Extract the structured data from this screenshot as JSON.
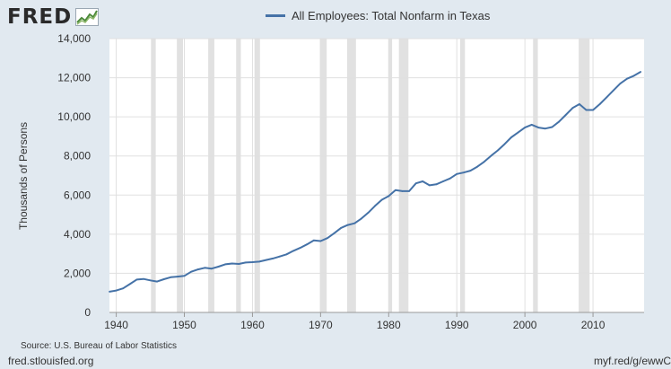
{
  "brand": {
    "name": "FRED",
    "logo_icon": "chart-trend-icon"
  },
  "colors": {
    "background": "#e1e9f0",
    "plot_bg": "#ffffff",
    "series": "#4572a7",
    "recession": "#e1e1e1",
    "grid": "#e0e0e0"
  },
  "footer": {
    "source": "Source: U.S. Bureau of Labor Statistics",
    "site": "fred.stlouisfed.org",
    "short_url": "myf.red/g/ewwC"
  },
  "chart_data": {
    "type": "line",
    "title": "",
    "xlabel": "",
    "ylabel": "Thousands of Persons",
    "xlim": [
      1939.0,
      2017.5
    ],
    "ylim": [
      0,
      14000
    ],
    "grid": true,
    "legend_position": "top-center",
    "x_ticks": [
      1940,
      1950,
      1960,
      1970,
      1980,
      1990,
      2000,
      2010
    ],
    "x_tick_labels": [
      "1940",
      "1950",
      "1960",
      "1970",
      "1980",
      "1990",
      "2000",
      "2010"
    ],
    "y_ticks": [
      0,
      2000,
      4000,
      6000,
      8000,
      10000,
      12000,
      14000
    ],
    "y_tick_labels": [
      "0",
      "2,000",
      "4,000",
      "6,000",
      "8,000",
      "10,000",
      "12,000",
      "14,000"
    ],
    "series": [
      {
        "name": "All Employees: Total Nonfarm in Texas",
        "x": [
          1939.0,
          1940.0,
          1941.0,
          1942.0,
          1943.0,
          1944.0,
          1945.0,
          1946.0,
          1947.0,
          1948.0,
          1949.0,
          1950.0,
          1951.0,
          1952.0,
          1953.0,
          1954.0,
          1955.0,
          1956.0,
          1957.0,
          1958.0,
          1959.0,
          1960.0,
          1961.0,
          1962.0,
          1963.0,
          1964.0,
          1965.0,
          1966.0,
          1967.0,
          1968.0,
          1969.0,
          1970.0,
          1971.0,
          1972.0,
          1973.0,
          1974.0,
          1975.0,
          1976.0,
          1977.0,
          1978.0,
          1979.0,
          1980.0,
          1981.0,
          1982.0,
          1983.0,
          1984.0,
          1985.0,
          1986.0,
          1987.0,
          1988.0,
          1989.0,
          1990.0,
          1991.0,
          1992.0,
          1993.0,
          1994.0,
          1995.0,
          1996.0,
          1997.0,
          1998.0,
          1999.0,
          2000.0,
          2001.0,
          2002.0,
          2003.0,
          2004.0,
          2005.0,
          2006.0,
          2007.0,
          2008.0,
          2009.0,
          2010.0,
          2011.0,
          2012.0,
          2013.0,
          2014.0,
          2015.0,
          2016.0,
          2017.0
        ],
        "values": [
          1060,
          1120,
          1230,
          1450,
          1680,
          1710,
          1640,
          1580,
          1700,
          1800,
          1830,
          1870,
          2080,
          2200,
          2280,
          2240,
          2340,
          2460,
          2500,
          2480,
          2550,
          2570,
          2600,
          2680,
          2760,
          2860,
          2970,
          3150,
          3300,
          3480,
          3680,
          3650,
          3800,
          4050,
          4320,
          4470,
          4560,
          4800,
          5100,
          5450,
          5760,
          5950,
          6250,
          6200,
          6200,
          6600,
          6700,
          6500,
          6550,
          6700,
          6850,
          7080,
          7150,
          7250,
          7450,
          7700,
          8000,
          8280,
          8600,
          8950,
          9200,
          9450,
          9600,
          9450,
          9400,
          9480,
          9750,
          10100,
          10450,
          10650,
          10350,
          10350,
          10650,
          11000,
          11350,
          11700,
          11950,
          12100,
          12300
        ]
      }
    ],
    "recessions": [
      [
        1945.1,
        1945.8
      ],
      [
        1948.9,
        1949.8
      ],
      [
        1953.5,
        1954.4
      ],
      [
        1957.6,
        1958.3
      ],
      [
        1960.3,
        1961.1
      ],
      [
        1969.9,
        1970.9
      ],
      [
        1973.9,
        1975.2
      ],
      [
        1980.0,
        1980.5
      ],
      [
        1981.5,
        1982.9
      ],
      [
        1990.5,
        1991.2
      ],
      [
        2001.2,
        2001.9
      ],
      [
        2007.9,
        2009.5
      ]
    ]
  }
}
